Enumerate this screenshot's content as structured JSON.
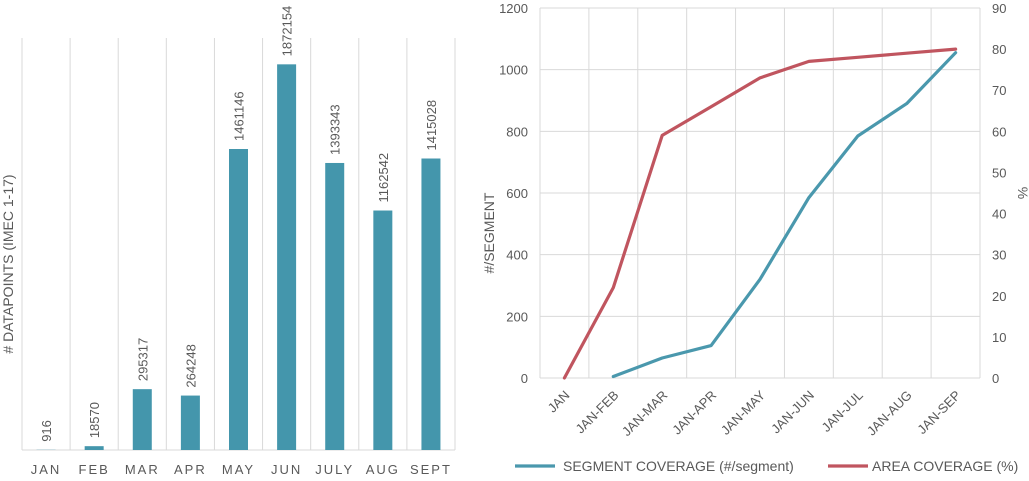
{
  "chart_data": [
    {
      "type": "bar",
      "categories": [
        "JAN",
        "FEB",
        "MAR",
        "APR",
        "MAY",
        "JUN",
        "JULY",
        "AUG",
        "SEPT"
      ],
      "values": [
        916,
        18570,
        295317,
        264248,
        1461146,
        1872154,
        1393343,
        1162542,
        1415028
      ],
      "ylabel": "# DATAPOINTS (IMEC 1-17)",
      "ylim": [
        0,
        2000000
      ],
      "color": "#4496ac",
      "grid": "vertical"
    },
    {
      "type": "line",
      "categories": [
        "JAN",
        "JAN-FEB",
        "JAN-MAR",
        "JAN-APR",
        "JAN-MAY",
        "JAN-JUN",
        "JAN-JUL",
        "JAN-AUG",
        "JAN-SEP"
      ],
      "y_left": {
        "label": "#/SEGMENT",
        "lim": [
          0,
          1200
        ],
        "ticks": [
          "0",
          "200",
          "400",
          "600",
          "800",
          "1000",
          "1200"
        ]
      },
      "y_right": {
        "label": "%",
        "lim": [
          0,
          90
        ],
        "ticks": [
          "0",
          "10",
          "20",
          "30",
          "40",
          "50",
          "60",
          "70",
          "80",
          "90"
        ]
      },
      "grid": "both",
      "legend_position": "bottom",
      "series": [
        {
          "name": "SEGMENT COVERAGE (#/segment)",
          "axis": "left",
          "color": "#4a98ad",
          "values": [
            null,
            5,
            65,
            105,
            320,
            585,
            785,
            890,
            1055
          ]
        },
        {
          "name": "AREA COVERAGE (%)",
          "axis": "right",
          "color": "#c0555f",
          "values": [
            0,
            22,
            59,
            66,
            73,
            77,
            78,
            79,
            80
          ]
        }
      ]
    }
  ]
}
